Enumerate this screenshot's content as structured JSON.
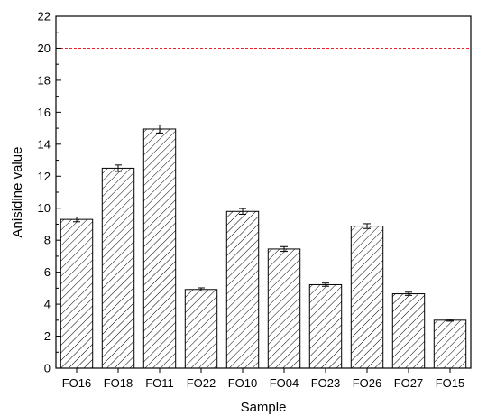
{
  "chart_data": {
    "type": "bar",
    "title": "",
    "xlabel": "Sample",
    "ylabel": "Anisidine value",
    "categories": [
      "FO16",
      "FO18",
      "FO11",
      "FO22",
      "FO10",
      "FO04",
      "FO23",
      "FO26",
      "FO27",
      "FO15"
    ],
    "values": [
      9.3,
      12.5,
      14.95,
      4.92,
      9.8,
      7.45,
      5.22,
      8.88,
      4.65,
      3.0
    ],
    "errors": [
      0.15,
      0.2,
      0.25,
      0.1,
      0.18,
      0.15,
      0.1,
      0.15,
      0.1,
      0.06
    ],
    "ylim": [
      0,
      22
    ],
    "yticks": [
      0,
      2,
      4,
      6,
      8,
      10,
      12,
      14,
      16,
      18,
      20,
      22
    ],
    "reference_line": {
      "y": 20,
      "style": "dashed",
      "color": "#e8202a"
    },
    "bar_fill": "diagonal-hatch",
    "bar_color": "#000000",
    "grid": false,
    "legend": "none"
  }
}
